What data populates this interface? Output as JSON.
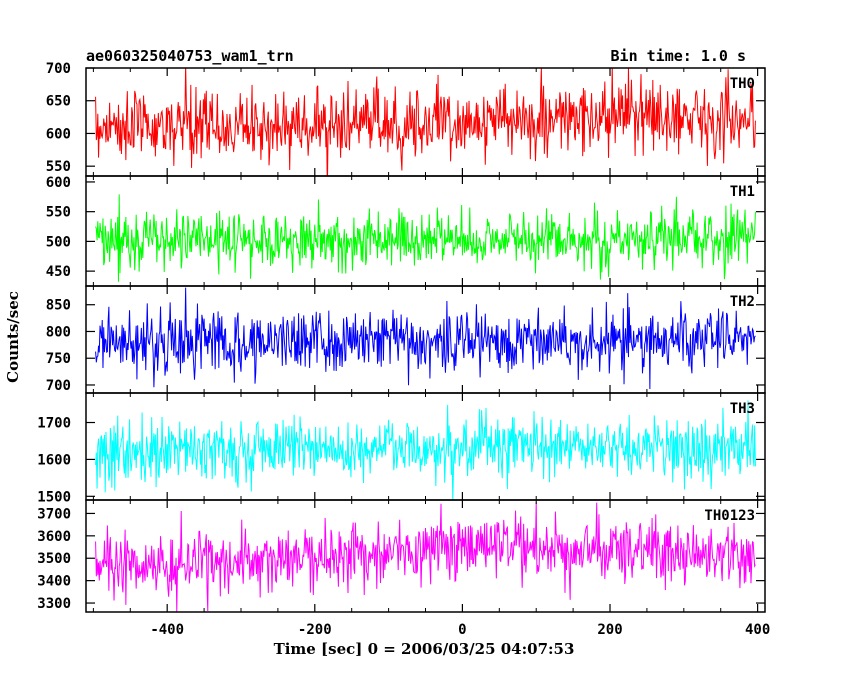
{
  "chart_data": {
    "type": "line",
    "title": "ae060325040753_wam1_trn",
    "bin_time_label": "Bin time: 1.0 s",
    "xlabel": "Time [sec] 0 = 2006/03/25 04:07:53",
    "ylabel": "Counts/sec",
    "xlim": [
      -510,
      410
    ],
    "x_ticks": [
      -400,
      -200,
      0,
      200,
      400
    ],
    "x_range": [
      -497,
      397
    ],
    "bin_size": 1.0,
    "grid": false,
    "panels": [
      {
        "name": "TH0",
        "color": "#ff0000",
        "ylim": [
          535,
          700
        ],
        "y_ticks": [
          550,
          600,
          650,
          700
        ],
        "mean_trend": [
          [
            -497,
            612
          ],
          [
            -300,
            610
          ],
          [
            -100,
            616
          ],
          [
            100,
            620
          ],
          [
            300,
            628
          ],
          [
            397,
            622
          ]
        ],
        "noise_sd": 27
      },
      {
        "name": "TH1",
        "color": "#00ff00",
        "ylim": [
          425,
          610
        ],
        "y_ticks": [
          450,
          500,
          550,
          600
        ],
        "mean_trend": [
          [
            -497,
            503
          ],
          [
            -100,
            503
          ],
          [
            100,
            504
          ],
          [
            397,
            506
          ]
        ],
        "noise_sd": 24
      },
      {
        "name": "TH2",
        "color": "#0000ff",
        "ylim": [
          685,
          885
        ],
        "y_ticks": [
          700,
          750,
          800,
          850
        ],
        "mean_trend": [
          [
            -497,
            780
          ],
          [
            0,
            785
          ],
          [
            397,
            782
          ]
        ],
        "noise_sd": 30
      },
      {
        "name": "TH3",
        "color": "#00ffff",
        "ylim": [
          1490,
          1780
        ],
        "y_ticks": [
          1500,
          1600,
          1700
        ],
        "mean_trend": [
          [
            -497,
            1625
          ],
          [
            0,
            1635
          ],
          [
            397,
            1628
          ]
        ],
        "noise_sd": 42
      },
      {
        "name": "TH0123",
        "color": "#ff00ff",
        "ylim": [
          3260,
          3760
        ],
        "y_ticks": [
          3300,
          3400,
          3500,
          3600,
          3700
        ],
        "mean_trend": [
          [
            -497,
            3470
          ],
          [
            -300,
            3480
          ],
          [
            -150,
            3520
          ],
          [
            0,
            3545
          ],
          [
            200,
            3535
          ],
          [
            397,
            3520
          ]
        ],
        "noise_sd": 72
      }
    ]
  }
}
